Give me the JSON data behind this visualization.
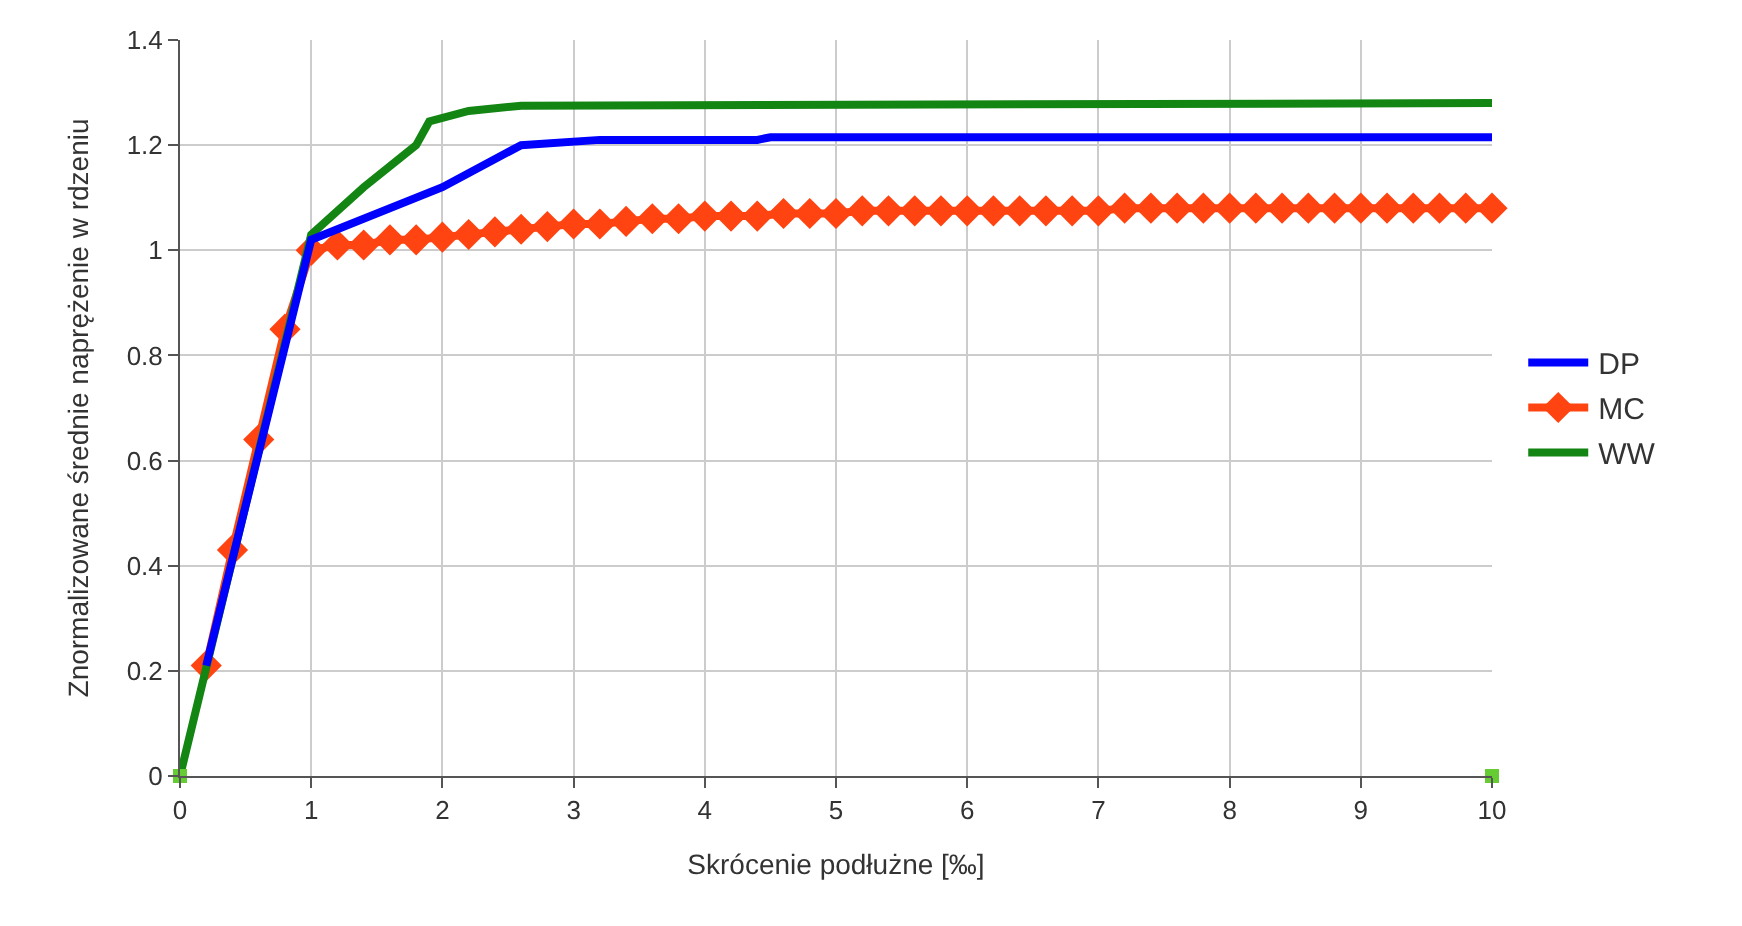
{
  "chart_data": {
    "type": "line",
    "xlabel": "Skrócenie podłużne [‰]",
    "ylabel": "Znormalizowane średnie naprężenie w rdzeniu",
    "xlim": [
      0,
      10
    ],
    "xticks": [
      0,
      1,
      2,
      3,
      4,
      5,
      6,
      7,
      8,
      9,
      10
    ],
    "ylim": [
      0,
      1.4
    ],
    "yticks": [
      0,
      0.2,
      0.4,
      0.6,
      0.8,
      1,
      1.2,
      1.4
    ],
    "grid": true,
    "legend": "right",
    "series": [
      {
        "name": "DP",
        "color": "#0000ff",
        "marker": "none",
        "x": [
          0.2,
          1.0,
          2.0,
          2.6,
          3.2,
          4.4,
          4.5,
          10
        ],
        "values": [
          0.21,
          1.02,
          1.12,
          1.2,
          1.21,
          1.21,
          1.215,
          1.215
        ]
      },
      {
        "name": "MC",
        "color": "#ff4411",
        "marker": "diamond",
        "x": [
          0.2,
          0.4,
          0.6,
          0.8,
          1.0,
          1.2,
          1.4,
          1.6,
          1.8,
          2.0,
          2.2,
          2.4,
          2.6,
          2.8,
          3.0,
          3.2,
          3.4,
          3.6,
          3.8,
          4.0,
          4.2,
          4.4,
          4.6,
          4.8,
          5.0,
          5.2,
          5.4,
          5.6,
          5.8,
          6.0,
          6.2,
          6.4,
          6.6,
          6.8,
          7.0,
          7.2,
          7.4,
          7.6,
          7.8,
          8.0,
          8.2,
          8.4,
          8.6,
          8.8,
          9.0,
          9.2,
          9.4,
          9.6,
          9.8,
          10.0
        ],
        "values": [
          0.21,
          0.43,
          0.64,
          0.85,
          1.0,
          1.01,
          1.01,
          1.02,
          1.02,
          1.025,
          1.03,
          1.035,
          1.04,
          1.045,
          1.05,
          1.05,
          1.055,
          1.06,
          1.06,
          1.065,
          1.065,
          1.065,
          1.07,
          1.07,
          1.07,
          1.075,
          1.075,
          1.075,
          1.075,
          1.075,
          1.075,
          1.075,
          1.075,
          1.075,
          1.075,
          1.08,
          1.08,
          1.08,
          1.08,
          1.08,
          1.08,
          1.08,
          1.08,
          1.08,
          1.08,
          1.08,
          1.08,
          1.08,
          1.08,
          1.08
        ]
      },
      {
        "name": "WW",
        "color": "#138513",
        "marker": "none",
        "x": [
          0,
          1.0,
          1.4,
          1.8,
          1.9,
          2.2,
          2.6,
          10
        ],
        "values": [
          0,
          1.03,
          1.12,
          1.2,
          1.245,
          1.265,
          1.275,
          1.28
        ]
      },
      {
        "type": "scatter",
        "color": "#66cc33",
        "marker": "square",
        "x": [
          0,
          10
        ],
        "values": [
          0,
          0
        ]
      }
    ]
  }
}
